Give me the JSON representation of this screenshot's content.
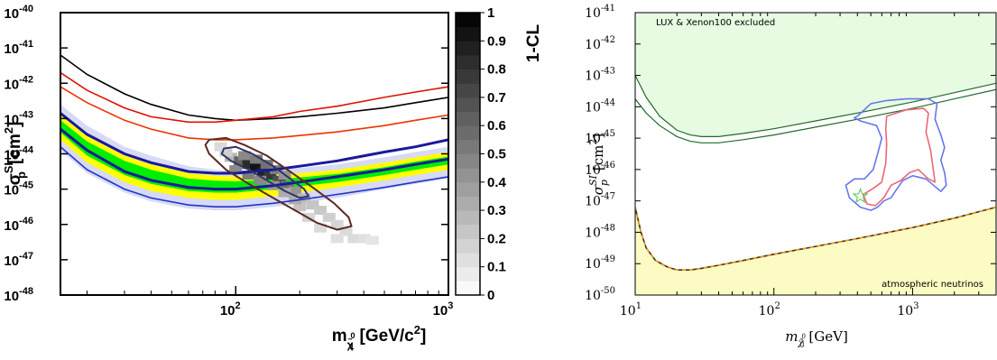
{
  "chart_data": [
    {
      "type": "heatmap",
      "xlabel_main": "m",
      "xlabel_sub": "χ̃",
      "xlabel_sub_sup": "0",
      "xlabel_sub_sub": "1",
      "xlabel_unit": "[GeV/c",
      "xlabel_unit_sup": "2",
      "xlabel_unit_close": "]",
      "ylabel_main": "σ",
      "ylabel_sup": "SI",
      "ylabel_sub": "p",
      "ylabel_unit": "[cm",
      "ylabel_unit_sup": "2",
      "ylabel_unit_close": "]",
      "xscale": "log",
      "yscale": "log",
      "xlim": [
        15,
        1000
      ],
      "ylim": [
        1e-48,
        1e-40
      ],
      "xticks": [
        {
          "v": 100,
          "base": "10",
          "exp": "2"
        },
        {
          "v": 1000,
          "base": "10",
          "exp": "3"
        }
      ],
      "yticks": [
        {
          "v": -40,
          "base": "10",
          "exp": "-40"
        },
        {
          "v": -41,
          "base": "10",
          "exp": "-41"
        },
        {
          "v": -42,
          "base": "10",
          "exp": "-42"
        },
        {
          "v": -43,
          "base": "10",
          "exp": "-43"
        },
        {
          "v": -44,
          "base": "10",
          "exp": "-44"
        },
        {
          "v": -45,
          "base": "10",
          "exp": "-45"
        },
        {
          "v": -46,
          "base": "10",
          "exp": "-46"
        },
        {
          "v": -47,
          "base": "10",
          "exp": "-47"
        },
        {
          "v": -48,
          "base": "10",
          "exp": "-48"
        }
      ],
      "colorbar": {
        "label": "1-CL",
        "range": [
          0,
          1
        ],
        "ticks": [
          "1",
          "0.9",
          "0.8",
          "0.7",
          "0.6",
          "0.5",
          "0.4",
          "0.3",
          "0.2",
          "0.1",
          "0"
        ]
      },
      "band_x": [
        15,
        20,
        30,
        40,
        60,
        80,
        100,
        150,
        200,
        300,
        500,
        700,
        1000
      ],
      "bands": {
        "outer_shade_hi": [
          -42.6,
          -43.2,
          -43.8,
          -44.05,
          -44.35,
          -44.45,
          -44.5,
          -44.45,
          -44.4,
          -44.3,
          -44.1,
          -43.95,
          -43.8
        ],
        "outer_shade_lo": [
          -43.9,
          -44.55,
          -45.1,
          -45.35,
          -45.55,
          -45.6,
          -45.6,
          -45.5,
          -45.4,
          -45.25,
          -45.0,
          -44.85,
          -44.7
        ],
        "yellow_hi": [
          -42.9,
          -43.5,
          -44.05,
          -44.3,
          -44.55,
          -44.62,
          -44.65,
          -44.6,
          -44.55,
          -44.45,
          -44.25,
          -44.1,
          -43.95
        ],
        "yellow_lo": [
          -43.6,
          -44.25,
          -44.8,
          -45.05,
          -45.25,
          -45.3,
          -45.3,
          -45.2,
          -45.1,
          -44.95,
          -44.75,
          -44.6,
          -44.45
        ],
        "green_hi": [
          -43.05,
          -43.65,
          -44.2,
          -44.45,
          -44.7,
          -44.76,
          -44.78,
          -44.72,
          -44.67,
          -44.57,
          -44.38,
          -44.22,
          -44.08
        ],
        "green_lo": [
          -43.4,
          -44.05,
          -44.6,
          -44.85,
          -45.05,
          -45.1,
          -45.1,
          -45.0,
          -44.92,
          -44.8,
          -44.6,
          -44.45,
          -44.3
        ]
      },
      "series": [
        {
          "color": "#000000",
          "x": [
            15,
            20,
            30,
            40,
            60,
            80,
            100,
            150,
            200,
            300,
            500,
            700,
            1000
          ],
          "y": [
            -41.2,
            -41.75,
            -42.3,
            -42.6,
            -42.9,
            -43.0,
            -43.05,
            -43.0,
            -42.95,
            -42.85,
            -42.7,
            -42.55,
            -42.4
          ]
        },
        {
          "color": "#dd1100",
          "x": [
            15,
            20,
            30,
            40,
            60,
            80,
            100,
            150,
            200,
            300,
            500,
            700,
            1000
          ],
          "y": [
            -41.7,
            -42.2,
            -42.7,
            -42.95,
            -43.1,
            -43.1,
            -43.05,
            -42.95,
            -42.8,
            -42.65,
            -42.4,
            -42.25,
            -42.1
          ]
        },
        {
          "color": "#ee3300",
          "x": [
            15,
            20,
            30,
            40,
            60,
            80,
            100,
            150,
            200,
            300,
            500,
            700,
            1000
          ],
          "y": [
            -42.1,
            -42.55,
            -43.05,
            -43.3,
            -43.55,
            -43.6,
            -43.6,
            -43.55,
            -43.48,
            -43.38,
            -43.2,
            -43.05,
            -42.9
          ]
        },
        {
          "color": "#1a1a99",
          "x": [
            15,
            20,
            30,
            40,
            60,
            80,
            100,
            150,
            200,
            300,
            500,
            700,
            1000
          ],
          "y": [
            -42.85,
            -43.45,
            -44.0,
            -44.25,
            -44.5,
            -44.55,
            -44.55,
            -44.45,
            -44.35,
            -44.2,
            -43.95,
            -43.8,
            -43.6
          ]
        },
        {
          "color": "#1a1a99",
          "x": [
            15,
            20,
            30,
            40,
            60,
            80,
            100,
            150,
            200,
            300,
            500,
            700,
            1000
          ],
          "y": [
            -43.3,
            -43.9,
            -44.5,
            -44.75,
            -44.95,
            -45.0,
            -45.0,
            -44.9,
            -44.8,
            -44.65,
            -44.45,
            -44.3,
            -44.15
          ]
        },
        {
          "color": "#2233cc",
          "x": [
            15,
            20,
            30,
            40,
            60,
            80,
            100,
            150,
            200,
            300,
            500,
            700,
            1000
          ],
          "y": [
            -43.8,
            -44.45,
            -45.0,
            -45.25,
            -45.45,
            -45.5,
            -45.5,
            -45.4,
            -45.3,
            -45.15,
            -44.95,
            -44.8,
            -44.65
          ]
        }
      ],
      "cells": [
        {
          "x": 95,
          "y": -44.1,
          "v": 0.25
        },
        {
          "x": 105,
          "y": -44.2,
          "v": 0.6
        },
        {
          "x": 115,
          "y": -44.3,
          "v": 0.85
        },
        {
          "x": 125,
          "y": -44.4,
          "v": 0.95
        },
        {
          "x": 135,
          "y": -44.5,
          "v": 0.9
        },
        {
          "x": 145,
          "y": -44.6,
          "v": 0.8
        },
        {
          "x": 160,
          "y": -44.75,
          "v": 0.7
        },
        {
          "x": 175,
          "y": -44.9,
          "v": 0.55
        },
        {
          "x": 190,
          "y": -45.05,
          "v": 0.4
        },
        {
          "x": 110,
          "y": -44.05,
          "v": 0.45
        },
        {
          "x": 125,
          "y": -44.15,
          "v": 0.5
        },
        {
          "x": 140,
          "y": -44.3,
          "v": 0.55
        },
        {
          "x": 155,
          "y": -44.45,
          "v": 0.5
        },
        {
          "x": 170,
          "y": -44.6,
          "v": 0.4
        },
        {
          "x": 100,
          "y": -44.45,
          "v": 0.45
        },
        {
          "x": 115,
          "y": -44.6,
          "v": 0.5
        },
        {
          "x": 130,
          "y": -44.75,
          "v": 0.45
        },
        {
          "x": 150,
          "y": -44.9,
          "v": 0.4
        },
        {
          "x": 170,
          "y": -45.1,
          "v": 0.3
        },
        {
          "x": 210,
          "y": -45.25,
          "v": 0.25
        },
        {
          "x": 230,
          "y": -45.45,
          "v": 0.2
        },
        {
          "x": 250,
          "y": -45.6,
          "v": 0.18
        },
        {
          "x": 275,
          "y": -45.8,
          "v": 0.15
        },
        {
          "x": 300,
          "y": -46.0,
          "v": 0.12
        },
        {
          "x": 330,
          "y": -46.2,
          "v": 0.1
        },
        {
          "x": 360,
          "y": -46.4,
          "v": 0.1
        },
        {
          "x": 300,
          "y": -46.4,
          "v": 0.08
        },
        {
          "x": 250,
          "y": -46.1,
          "v": 0.1
        },
        {
          "x": 220,
          "y": -45.8,
          "v": 0.12
        },
        {
          "x": 400,
          "y": -46.4,
          "v": 0.08
        },
        {
          "x": 440,
          "y": -46.45,
          "v": 0.06
        },
        {
          "x": 200,
          "y": -45.5,
          "v": 0.2
        },
        {
          "x": 190,
          "y": -45.3,
          "v": 0.3
        },
        {
          "x": 90,
          "y": -43.95,
          "v": 0.15
        },
        {
          "x": 85,
          "y": -43.8,
          "v": 0.1
        }
      ],
      "contours": [
        {
          "color": "#5b2a22",
          "pts": [
            [
              75,
              -43.6
            ],
            [
              90,
              -43.55
            ],
            [
              110,
              -43.75
            ],
            [
              140,
              -44.05
            ],
            [
              180,
              -44.5
            ],
            [
              230,
              -44.95
            ],
            [
              290,
              -45.4
            ],
            [
              340,
              -45.8
            ],
            [
              350,
              -46.05
            ],
            [
              300,
              -46.15
            ],
            [
              240,
              -45.95
            ],
            [
              190,
              -45.6
            ],
            [
              150,
              -45.25
            ],
            [
              115,
              -44.85
            ],
            [
              90,
              -44.45
            ],
            [
              75,
              -44.0
            ],
            [
              72,
              -43.75
            ]
          ]
        },
        {
          "color": "#333366",
          "pts": [
            [
              88,
              -43.85
            ],
            [
              100,
              -43.8
            ],
            [
              120,
              -44.0
            ],
            [
              150,
              -44.35
            ],
            [
              180,
              -44.7
            ],
            [
              210,
              -45.0
            ],
            [
              220,
              -45.2
            ],
            [
              200,
              -45.25
            ],
            [
              170,
              -45.05
            ],
            [
              140,
              -44.75
            ],
            [
              115,
              -44.45
            ],
            [
              95,
              -44.2
            ],
            [
              86,
              -44.0
            ]
          ]
        }
      ]
    },
    {
      "type": "area",
      "xlabel_main": "m",
      "xlabel_sub": "χ̃",
      "xlabel_sub_sup": "0",
      "xlabel_sub_sub": "1",
      "xlabel_unit": "[GeV]",
      "ylabel_main": "σ",
      "ylabel_sup": "SI",
      "ylabel_sub": "p",
      "ylabel_unit": "[cm",
      "ylabel_unit_sup": "2",
      "ylabel_unit_close": "]",
      "xscale": "log",
      "yscale": "log",
      "xlim": [
        10,
        4000
      ],
      "ylim": [
        1e-50,
        1e-41
      ],
      "xticks": [
        {
          "v": 10,
          "base": "10",
          "exp": "1"
        },
        {
          "v": 100,
          "base": "10",
          "exp": "2"
        },
        {
          "v": 1000,
          "base": "10",
          "exp": "3"
        }
      ],
      "yticks": [
        {
          "v": -41,
          "base": "10",
          "exp": "-41"
        },
        {
          "v": -42,
          "base": "10",
          "exp": "-42"
        },
        {
          "v": -43,
          "base": "10",
          "exp": "-43"
        },
        {
          "v": -44,
          "base": "10",
          "exp": "-44"
        },
        {
          "v": -45,
          "base": "10",
          "exp": "-45"
        },
        {
          "v": -46,
          "base": "10",
          "exp": "-46"
        },
        {
          "v": -47,
          "base": "10",
          "exp": "-47"
        },
        {
          "v": -48,
          "base": "10",
          "exp": "-48"
        },
        {
          "v": -49,
          "base": "10",
          "exp": "-49"
        },
        {
          "v": -50,
          "base": "10",
          "exp": "-50"
        }
      ],
      "annotations": {
        "top": "LUX & Xenon100 excluded",
        "bottom": "atmospheric neutrinos"
      },
      "excluded_region": {
        "color": "#e6fbe1",
        "x": [
          10,
          12,
          15,
          20,
          25,
          30,
          40,
          60,
          100,
          200,
          400,
          1000,
          2000,
          4000
        ],
        "y_upper_line": [
          -43.0,
          -43.7,
          -44.3,
          -44.75,
          -44.9,
          -44.95,
          -44.95,
          -44.85,
          -44.7,
          -44.45,
          -44.2,
          -43.85,
          -43.55,
          -43.25
        ],
        "y_lower_line": [
          -43.75,
          -44.2,
          -44.6,
          -44.95,
          -45.1,
          -45.15,
          -45.15,
          -45.05,
          -44.9,
          -44.65,
          -44.4,
          -44.05,
          -43.75,
          -43.45
        ]
      },
      "neutrino_floor": {
        "color": "#fbfbc3",
        "x": [
          10,
          11,
          12,
          14,
          17,
          20,
          25,
          30,
          40,
          60,
          100,
          200,
          400,
          1000,
          2000,
          4000
        ],
        "y": [
          -47.2,
          -48.0,
          -48.5,
          -48.9,
          -49.1,
          -49.2,
          -49.2,
          -49.15,
          -49.05,
          -48.9,
          -48.7,
          -48.45,
          -48.2,
          -47.85,
          -47.55,
          -47.2
        ]
      },
      "contours": [
        {
          "color": "#6677ee",
          "pts": [
            [
              400,
              -44.3
            ],
            [
              500,
              -43.9
            ],
            [
              650,
              -43.8
            ],
            [
              900,
              -43.75
            ],
            [
              1300,
              -43.75
            ],
            [
              1500,
              -43.9
            ],
            [
              1450,
              -44.4
            ],
            [
              1600,
              -44.9
            ],
            [
              1700,
              -45.3
            ],
            [
              1600,
              -45.7
            ],
            [
              1700,
              -46.1
            ],
            [
              1750,
              -46.5
            ],
            [
              1600,
              -46.7
            ],
            [
              1250,
              -46.3
            ],
            [
              1000,
              -46.2
            ],
            [
              850,
              -46.35
            ],
            [
              750,
              -46.7
            ],
            [
              700,
              -46.9
            ],
            [
              620,
              -47.0
            ],
            [
              560,
              -47.2
            ],
            [
              500,
              -47.3
            ],
            [
              420,
              -47.2
            ],
            [
              350,
              -46.9
            ],
            [
              330,
              -46.5
            ],
            [
              380,
              -46.3
            ],
            [
              450,
              -46.3
            ],
            [
              520,
              -46.0
            ],
            [
              560,
              -45.5
            ],
            [
              600,
              -45.0
            ],
            [
              550,
              -44.6
            ],
            [
              420,
              -44.45
            ],
            [
              380,
              -44.35
            ]
          ]
        },
        {
          "color": "#ee6677",
          "pts": [
            [
              650,
              -44.3
            ],
            [
              900,
              -44.1
            ],
            [
              1200,
              -44.05
            ],
            [
              1300,
              -44.2
            ],
            [
              1250,
              -44.8
            ],
            [
              1350,
              -45.4
            ],
            [
              1400,
              -45.9
            ],
            [
              1450,
              -46.4
            ],
            [
              1300,
              -46.3
            ],
            [
              1100,
              -46.0
            ],
            [
              950,
              -46.1
            ],
            [
              820,
              -46.35
            ],
            [
              700,
              -46.5
            ],
            [
              620,
              -46.9
            ],
            [
              540,
              -47.15
            ],
            [
              470,
              -47.1
            ],
            [
              440,
              -46.8
            ],
            [
              520,
              -46.6
            ],
            [
              600,
              -46.4
            ],
            [
              640,
              -45.8
            ],
            [
              650,
              -45.2
            ],
            [
              640,
              -44.7
            ]
          ]
        }
      ],
      "marker": {
        "x": 420,
        "y": -46.85,
        "symbol": "star",
        "color": "#66cc66"
      }
    }
  ]
}
